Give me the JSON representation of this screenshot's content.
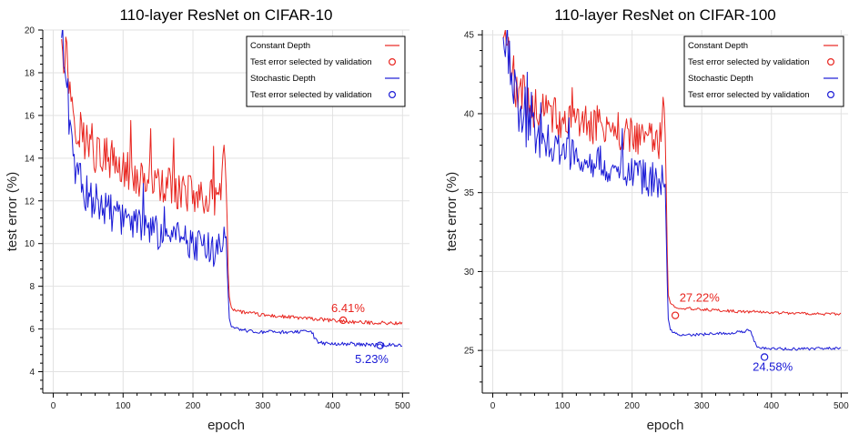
{
  "chart_data": [
    {
      "type": "line",
      "title": "110-layer ResNet on CIFAR-10",
      "xlabel": "epoch",
      "ylabel": "test error (%)",
      "xlim": [
        -15,
        510
      ],
      "ylim": [
        3,
        20
      ],
      "xticks": [
        0,
        100,
        200,
        300,
        400,
        500
      ],
      "yticks": [
        4,
        6,
        8,
        10,
        12,
        14,
        16,
        18,
        20
      ],
      "grid": true,
      "legend_position": "top-right",
      "legend": [
        {
          "label": "Constant Depth",
          "kind": "line",
          "color": "#e8251f"
        },
        {
          "label": "Test error selected by validation",
          "kind": "marker",
          "color": "#e8251f"
        },
        {
          "label": "Stochastic Depth",
          "kind": "line",
          "color": "#1a1ad6"
        },
        {
          "label": "Test error selected by validation",
          "kind": "marker",
          "color": "#1a1ad6"
        }
      ],
      "series": [
        {
          "name": "Constant Depth",
          "color": "#e8251f",
          "x": [
            12,
            15,
            20,
            25,
            30,
            35,
            40,
            45,
            50,
            60,
            70,
            80,
            90,
            100,
            110,
            120,
            130,
            140,
            150,
            160,
            170,
            180,
            190,
            200,
            210,
            220,
            230,
            240,
            245,
            248,
            250,
            252,
            255,
            260,
            270,
            280,
            290,
            300,
            320,
            340,
            360,
            380,
            400,
            420,
            440,
            460,
            480,
            500
          ],
          "y": [
            20,
            19,
            18.5,
            17,
            16,
            15.5,
            15,
            14.8,
            14.5,
            14.2,
            14,
            13.8,
            13.6,
            13.4,
            13.2,
            13,
            12.9,
            12.8,
            12.7,
            12.6,
            12.5,
            12.4,
            12.3,
            12.2,
            12.2,
            12.1,
            12,
            12,
            14,
            13,
            9,
            7.5,
            7,
            6.9,
            6.8,
            6.75,
            6.7,
            6.65,
            6.6,
            6.55,
            6.5,
            6.45,
            6.4,
            6.35,
            6.3,
            6.3,
            6.28,
            6.25
          ],
          "noise": 0.9,
          "noise_until": 250
        },
        {
          "name": "Stochastic Depth",
          "color": "#1a1ad6",
          "x": [
            12,
            15,
            20,
            25,
            30,
            35,
            40,
            45,
            50,
            60,
            70,
            80,
            90,
            100,
            110,
            120,
            130,
            140,
            150,
            160,
            170,
            180,
            190,
            200,
            210,
            220,
            230,
            240,
            245,
            248,
            250,
            252,
            255,
            260,
            270,
            280,
            290,
            300,
            320,
            340,
            360,
            370,
            375,
            380,
            400,
            420,
            440,
            460,
            480,
            500
          ],
          "y": [
            20,
            18.5,
            17,
            15,
            13.8,
            13.2,
            12.8,
            12.5,
            12.2,
            11.9,
            11.6,
            11.4,
            11.2,
            11,
            10.9,
            10.8,
            10.6,
            10.5,
            10.4,
            10.3,
            10.2,
            10.1,
            10,
            9.9,
            9.8,
            9.7,
            9.6,
            9.5,
            10.5,
            9.5,
            8,
            6.5,
            6.1,
            6,
            5.95,
            5.9,
            5.85,
            5.85,
            5.85,
            5.85,
            5.85,
            5.9,
            5.5,
            5.35,
            5.3,
            5.3,
            5.28,
            5.25,
            5.25,
            5.22
          ],
          "noise": 0.8,
          "noise_until": 250
        }
      ],
      "selected_points": [
        {
          "x": 415,
          "y": 6.41,
          "color": "#e8251f"
        },
        {
          "x": 468,
          "y": 5.23,
          "color": "#1a1ad6"
        }
      ],
      "annotations": [
        {
          "text": "6.41%",
          "x": 398,
          "y": 6.8,
          "color": "#e8251f"
        },
        {
          "text": "5.23%",
          "x": 432,
          "y": 4.4,
          "color": "#1a1ad6"
        }
      ]
    },
    {
      "type": "line",
      "title": "110-layer ResNet on CIFAR-100",
      "xlabel": "epoch",
      "ylabel": "test error (%)",
      "xlim": [
        -15,
        510
      ],
      "ylim": [
        22.3,
        45.3
      ],
      "xticks": [
        0,
        100,
        200,
        300,
        400,
        500
      ],
      "yticks": [
        25,
        30,
        35,
        40,
        45
      ],
      "grid": true,
      "legend_position": "top-right",
      "legend": [
        {
          "label": "Constant Depth",
          "kind": "line",
          "color": "#e8251f"
        },
        {
          "label": "Test error selected by validation",
          "kind": "marker",
          "color": "#e8251f"
        },
        {
          "label": "Stochastic Depth",
          "kind": "line",
          "color": "#1a1ad6"
        },
        {
          "label": "Test error selected by validation",
          "kind": "marker",
          "color": "#1a1ad6"
        }
      ],
      "series": [
        {
          "name": "Constant Depth",
          "color": "#e8251f",
          "x": [
            15,
            20,
            25,
            30,
            35,
            40,
            45,
            50,
            60,
            70,
            80,
            90,
            100,
            110,
            120,
            130,
            140,
            150,
            160,
            170,
            180,
            190,
            200,
            210,
            220,
            230,
            240,
            245,
            248,
            250,
            252,
            255,
            260,
            270,
            280,
            290,
            300,
            320,
            340,
            360,
            380,
            400,
            420,
            440,
            460,
            480,
            500
          ],
          "y": [
            45.3,
            44,
            43,
            42,
            41.5,
            41,
            40.8,
            40.5,
            40.2,
            40,
            39.8,
            39.6,
            39.5,
            39.4,
            39.3,
            39.2,
            39.1,
            39,
            38.9,
            38.8,
            38.7,
            38.6,
            38.6,
            38.5,
            38.4,
            38.3,
            38.2,
            40,
            39,
            32,
            28.5,
            28,
            27.8,
            27.7,
            27.65,
            27.6,
            27.6,
            27.55,
            27.5,
            27.45,
            27.45,
            27.4,
            27.38,
            27.35,
            27.33,
            27.3,
            27.3
          ],
          "noise": 1.2,
          "noise_until": 250
        },
        {
          "name": "Stochastic Depth",
          "color": "#1a1ad6",
          "x": [
            15,
            20,
            25,
            30,
            35,
            40,
            45,
            50,
            60,
            70,
            80,
            90,
            100,
            110,
            120,
            130,
            140,
            150,
            160,
            170,
            180,
            190,
            200,
            210,
            220,
            230,
            240,
            245,
            248,
            250,
            252,
            255,
            260,
            270,
            280,
            290,
            300,
            320,
            340,
            360,
            370,
            375,
            380,
            400,
            420,
            440,
            460,
            480,
            500
          ],
          "y": [
            45.3,
            44.5,
            43,
            41.5,
            40.5,
            39.5,
            39.2,
            39,
            38.6,
            38.3,
            38,
            37.8,
            37.6,
            37.5,
            37.3,
            37.1,
            37,
            36.8,
            36.7,
            36.5,
            36.4,
            36.2,
            36.1,
            36,
            35.8,
            35.7,
            35.5,
            36.5,
            35,
            30,
            27,
            26.3,
            26.1,
            26,
            26,
            26,
            26,
            26.1,
            26.1,
            26.2,
            26.3,
            25.6,
            25.2,
            25.1,
            25.1,
            25.1,
            25.1,
            25.15,
            25.1
          ],
          "noise": 1.1,
          "noise_until": 250
        }
      ],
      "selected_points": [
        {
          "x": 262,
          "y": 27.22,
          "color": "#e8251f"
        },
        {
          "x": 390,
          "y": 24.58,
          "color": "#1a1ad6"
        }
      ],
      "annotations": [
        {
          "text": "27.22%",
          "x": 268,
          "y": 28.1,
          "color": "#e8251f"
        },
        {
          "text": "24.58%",
          "x": 373,
          "y": 23.7,
          "color": "#1a1ad6"
        }
      ]
    }
  ]
}
